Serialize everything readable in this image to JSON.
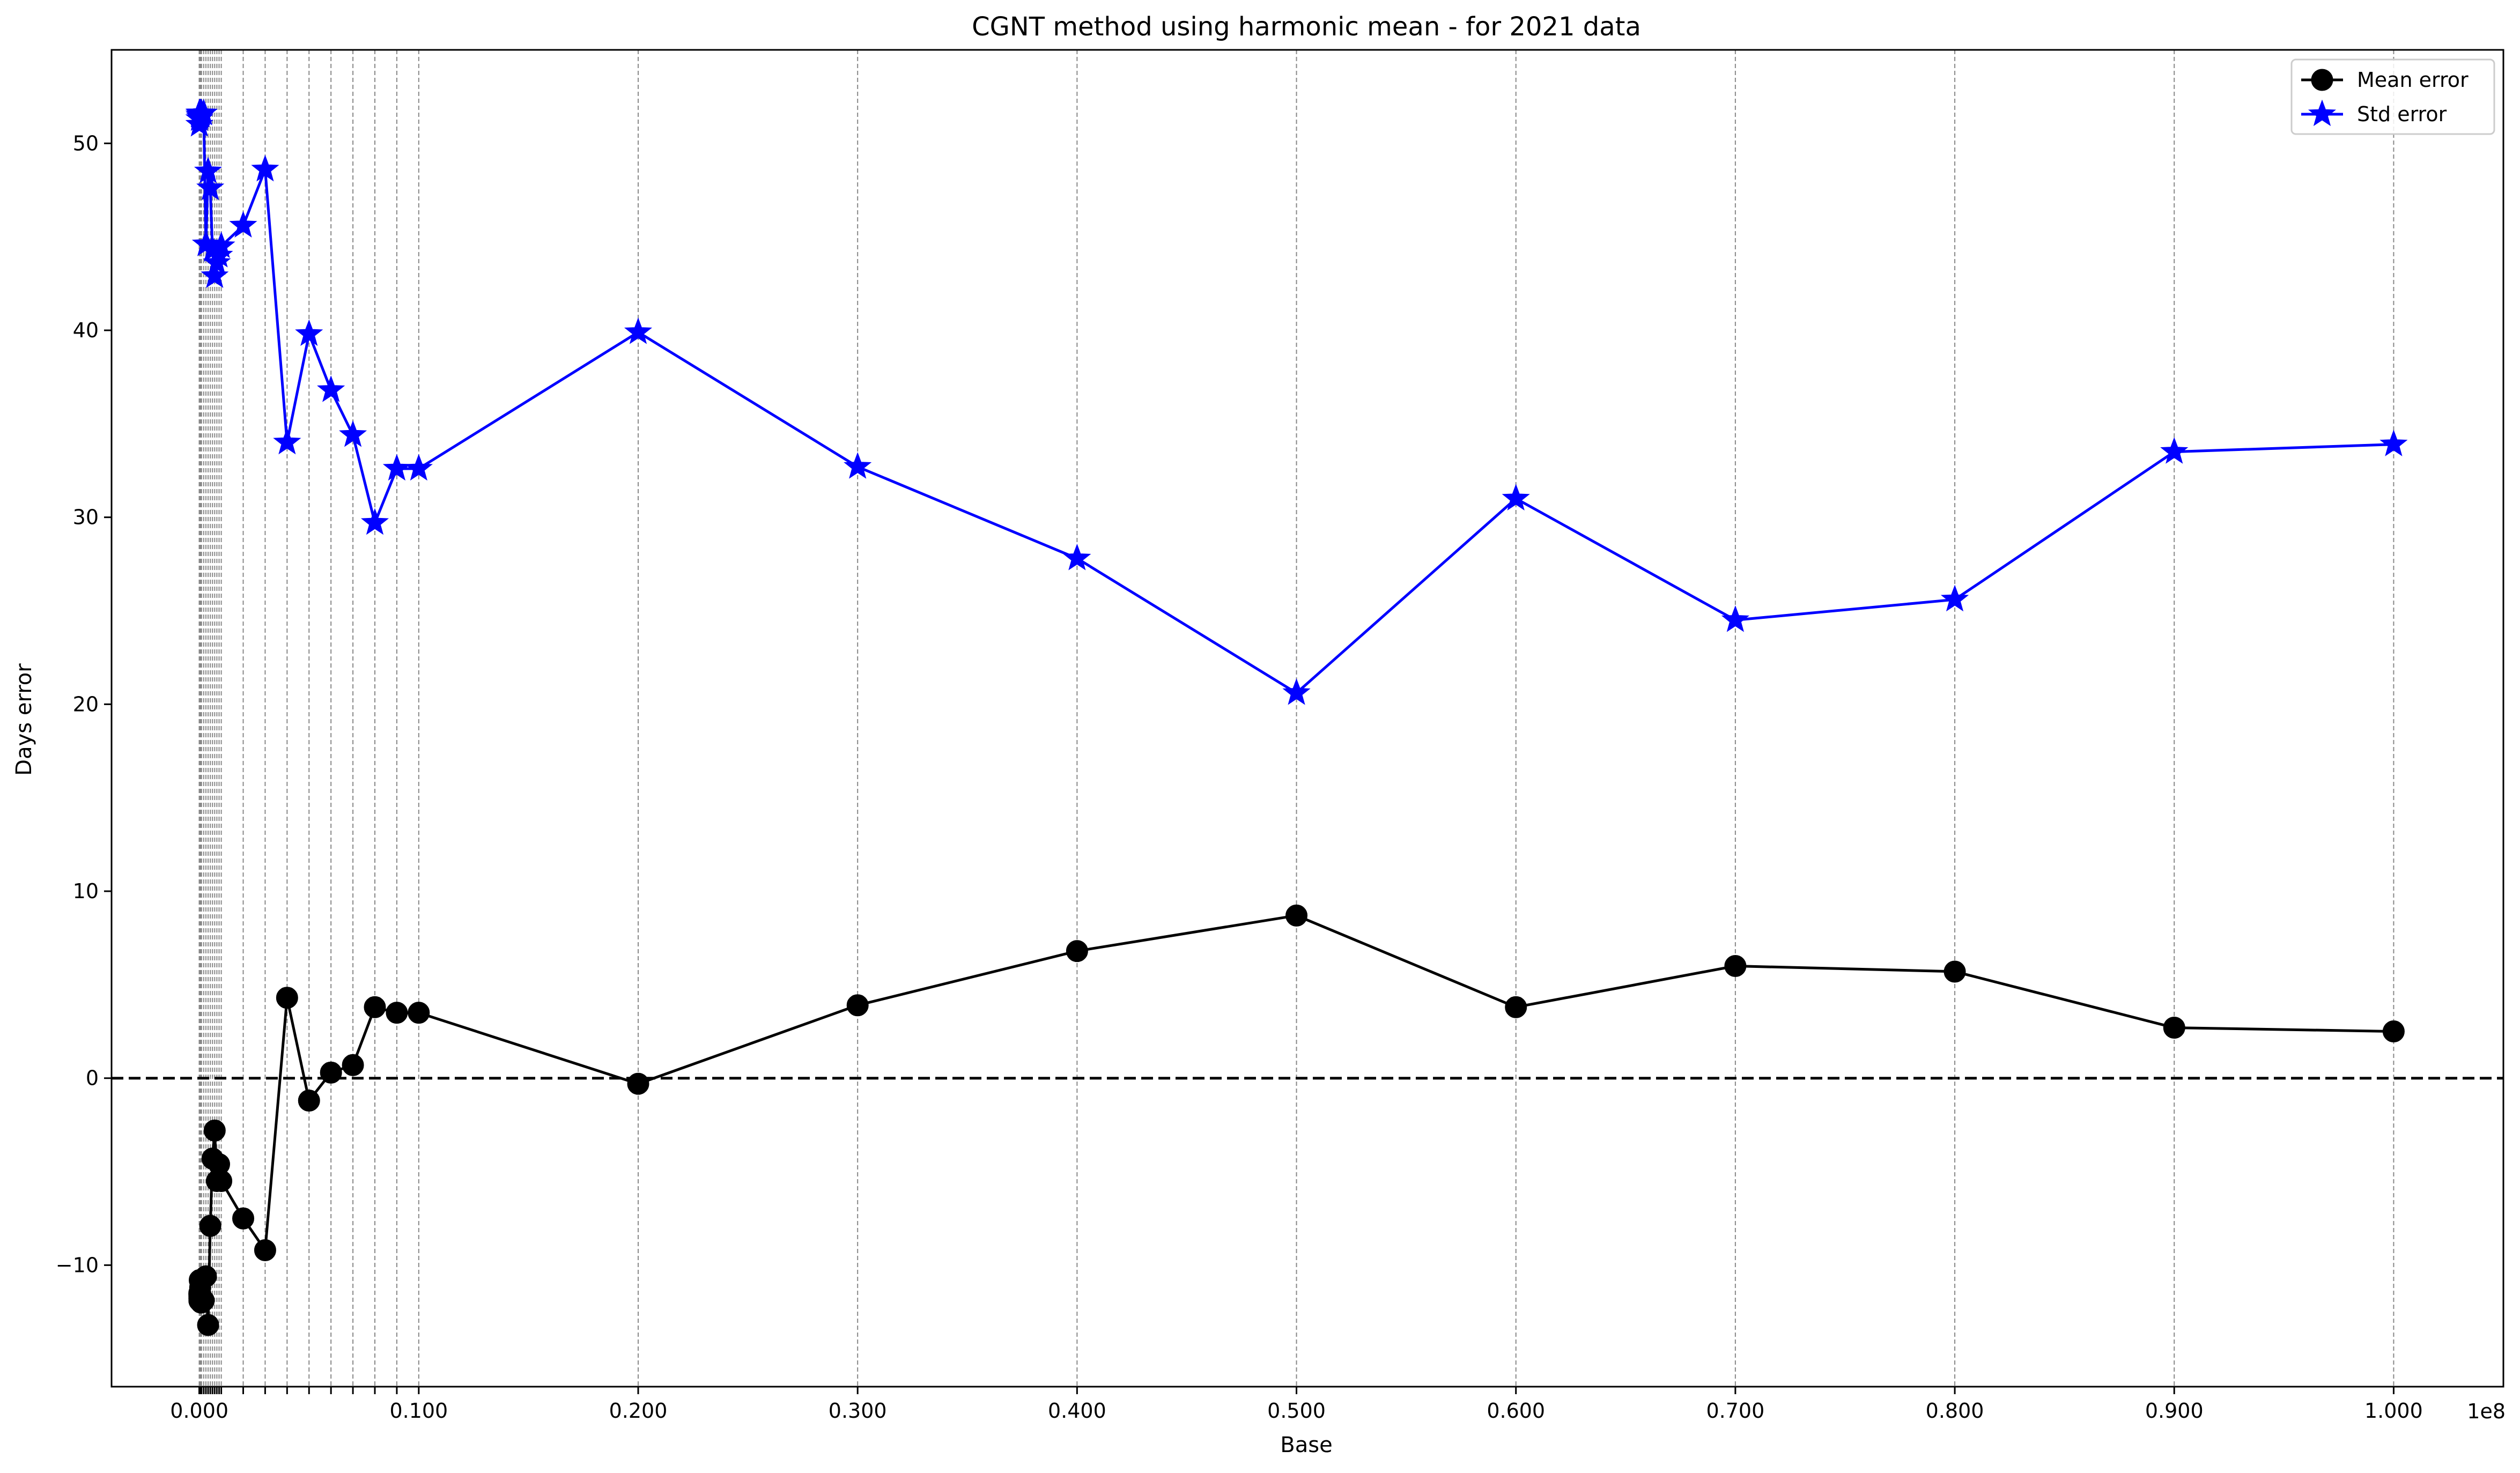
{
  "chart_data": {
    "type": "line",
    "title": "CGNT method using harmonic mean - for 2021 data",
    "xlabel": "Base",
    "ylabel": "Days error",
    "x_offset_label": "1e8",
    "xlim": [
      -4000000,
      105000000
    ],
    "ylim": [
      -16.5,
      55
    ],
    "x": [
      1000,
      2000,
      3000,
      4000,
      5000,
      6000,
      7000,
      8000,
      9000,
      10000,
      20000,
      30000,
      40000,
      50000,
      60000,
      70000,
      80000,
      90000,
      100000,
      200000,
      300000,
      400000,
      500000,
      600000,
      700000,
      800000,
      900000,
      1000000,
      2000000,
      3000000,
      4000000,
      5000000,
      6000000,
      7000000,
      8000000,
      9000000,
      10000000,
      20000000,
      30000000,
      40000000,
      50000000,
      60000000,
      70000000,
      80000000,
      90000000,
      100000000
    ],
    "series": [
      {
        "name": "Mean error",
        "color": "#000000",
        "marker": "circle",
        "values": [
          -11.5,
          -11.6,
          -11.7,
          -11.8,
          -11.9,
          -11.8,
          -11.8,
          -11.9,
          -11.8,
          -11.9,
          -10.8,
          -11.5,
          -11.2,
          -11.9,
          -11.6,
          -11.8,
          -12.0,
          -11.9,
          -11.8,
          -11.9,
          -10.6,
          -13.2,
          -7.9,
          -4.3,
          -2.8,
          -5.5,
          -4.6,
          -5.5,
          -7.5,
          -9.2,
          4.3,
          -1.2,
          0.3,
          0.7,
          3.8,
          3.5,
          3.5,
          -0.3,
          3.9,
          6.8,
          8.7,
          3.8,
          6.0,
          5.7,
          2.7,
          2.5
        ]
      },
      {
        "name": "Std error",
        "color": "#0000ff",
        "marker": "star",
        "values": [
          51.0,
          51.3,
          51.5,
          51.6,
          51.6,
          51.5,
          51.6,
          51.6,
          51.5,
          51.6,
          51.4,
          51.6,
          51.5,
          51.6,
          51.5,
          51.6,
          51.5,
          51.6,
          51.6,
          51.6,
          44.6,
          48.5,
          47.6,
          44.3,
          42.9,
          43.6,
          44.0,
          44.5,
          45.6,
          48.6,
          34.0,
          39.8,
          36.8,
          34.4,
          29.7,
          32.6,
          32.6,
          39.9,
          32.7,
          27.8,
          20.6,
          31.0,
          24.5,
          25.6,
          33.5,
          33.9
        ]
      }
    ],
    "xticks": [
      {
        "value": 0,
        "label": "0.000"
      },
      {
        "value": 10000000,
        "label": "0.100"
      },
      {
        "value": 20000000,
        "label": "0.200"
      },
      {
        "value": 30000000,
        "label": "0.300"
      },
      {
        "value": 40000000,
        "label": "0.400"
      },
      {
        "value": 50000000,
        "label": "0.500"
      },
      {
        "value": 60000000,
        "label": "0.600"
      },
      {
        "value": 70000000,
        "label": "0.700"
      },
      {
        "value": 80000000,
        "label": "0.800"
      },
      {
        "value": 90000000,
        "label": "0.900"
      },
      {
        "value": 100000000,
        "label": "1.000"
      }
    ],
    "yticks": [
      -10,
      0,
      10,
      20,
      30,
      40,
      50
    ],
    "hline": 0,
    "vgrid": "dashed gray at each x",
    "legend_position": "top-right"
  }
}
